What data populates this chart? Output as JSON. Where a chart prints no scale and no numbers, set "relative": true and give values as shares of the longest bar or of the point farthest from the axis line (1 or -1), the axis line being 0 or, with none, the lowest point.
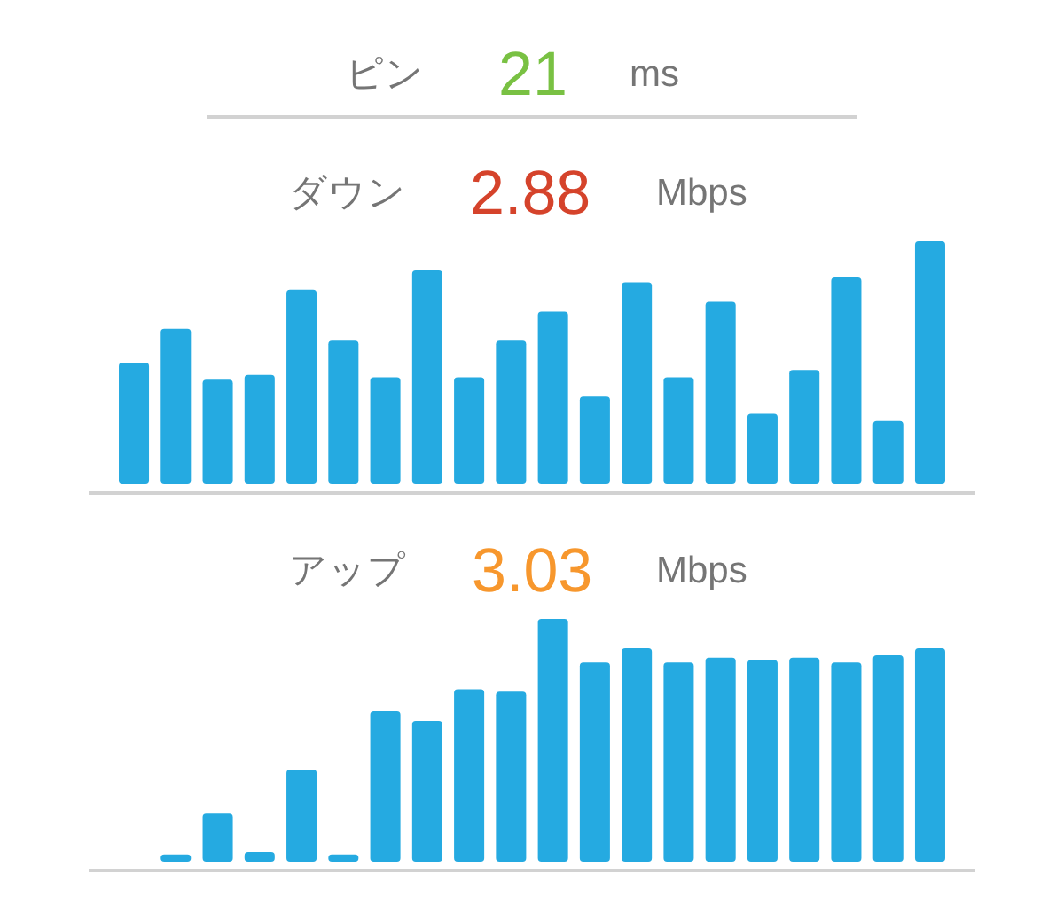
{
  "chart_data": [
    {
      "type": "other",
      "title": "ピン",
      "annotations": [
        "21",
        "ms"
      ]
    },
    {
      "type": "bar",
      "title": "ダウン",
      "annotations": [
        "2.88",
        "Mbps"
      ],
      "categories": [
        null,
        null,
        null,
        null,
        null,
        null,
        null,
        null,
        null,
        null,
        null,
        null,
        null,
        null,
        null,
        null,
        null,
        null,
        null,
        null
      ],
      "values": [
        0.5,
        0.64,
        0.43,
        0.45,
        0.8,
        0.59,
        0.44,
        0.88,
        0.44,
        0.59,
        0.71,
        0.36,
        0.83,
        0.44,
        0.75,
        0.29,
        0.47,
        0.85,
        0.26,
        1
      ],
      "color": "#25aae1",
      "relative": true,
      "tick_labels": false
    },
    {
      "type": "bar",
      "title": "アップ",
      "annotations": [
        "3.03",
        "Mbps"
      ],
      "categories": [
        null,
        null,
        null,
        null,
        null,
        null,
        null,
        null,
        null,
        null,
        null,
        null,
        null,
        null,
        null,
        null,
        null,
        null,
        null,
        null
      ],
      "values": [
        null,
        0.03,
        0.2,
        0.04,
        0.38,
        0.03,
        0.62,
        0.58,
        0.71,
        0.7,
        1,
        0.82,
        0.88,
        0.82,
        0.84,
        0.83,
        0.84,
        0.82,
        0.85,
        0.88
      ],
      "color": "#25aae1",
      "relative": true,
      "tick_labels": false
    }
  ]
}
